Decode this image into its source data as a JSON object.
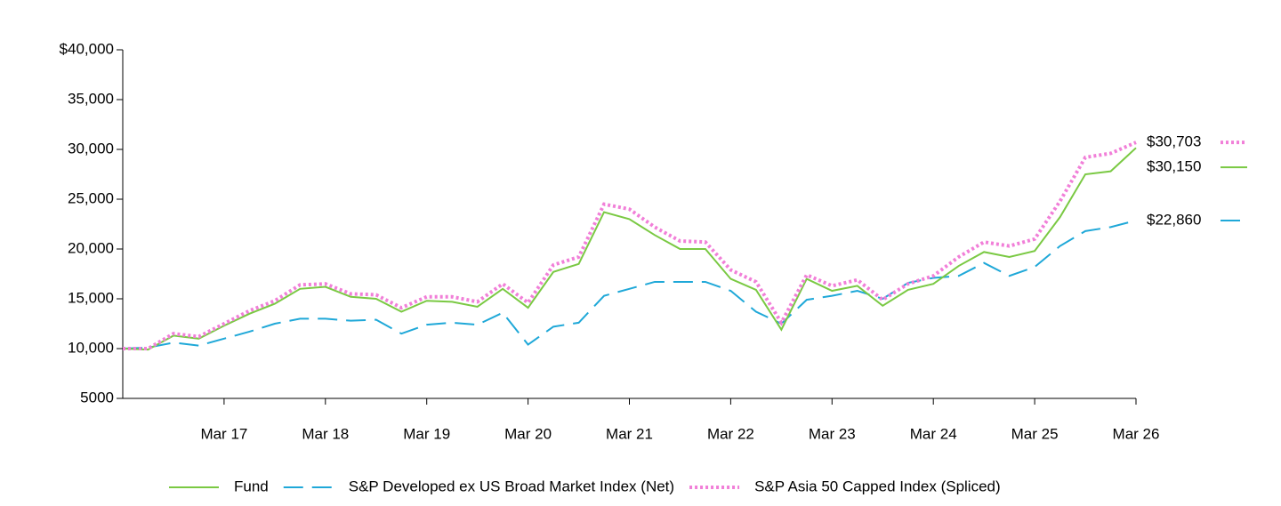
{
  "chart_data": {
    "type": "line",
    "categories": [
      null,
      null,
      null,
      null,
      "Mar 17",
      null,
      null,
      null,
      "Mar 18",
      null,
      null,
      null,
      "Mar 19",
      null,
      null,
      null,
      "Mar 20",
      null,
      null,
      null,
      "Mar 21",
      null,
      null,
      null,
      "Mar 22",
      null,
      null,
      null,
      "Mar 23",
      null,
      null,
      null,
      "Mar 24",
      null,
      null,
      null,
      "Mar 25",
      null,
      null,
      null,
      "Mar 26"
    ],
    "series": [
      {
        "name": "Fund",
        "color": "#7ac943",
        "style": "solid",
        "values": [
          10000,
          9900,
          11300,
          11000,
          12300,
          13500,
          14500,
          16000,
          16200,
          15200,
          15000,
          13700,
          14800,
          14700,
          14200,
          16000,
          14100,
          17700,
          18500,
          23700,
          23000,
          21400,
          20000,
          20000,
          17000,
          15900,
          11900,
          17000,
          15800,
          16300,
          14300,
          15900,
          16500,
          18300,
          19700,
          19200,
          19800,
          23200,
          27500,
          27800,
          30150
        ],
        "value_labels": [
          null,
          null,
          null,
          null,
          null,
          null,
          null,
          null,
          null,
          null,
          null,
          null,
          null,
          null,
          null,
          null,
          null,
          null,
          null,
          null,
          null,
          null,
          null,
          null,
          null,
          null,
          null,
          null,
          null,
          null,
          null,
          null,
          null,
          null,
          null,
          null,
          null,
          null,
          null,
          null,
          "$30,150"
        ]
      },
      {
        "name": "S&P Developed ex US Broad Market Index (Net)",
        "color": "#1fa8d8",
        "style": "dashed",
        "values": [
          10000,
          10100,
          10600,
          10300,
          11000,
          11700,
          12500,
          13000,
          13000,
          12800,
          12900,
          11500,
          12400,
          12600,
          12400,
          13600,
          10400,
          12200,
          12600,
          15300,
          16000,
          16700,
          16700,
          16700,
          15800,
          13700,
          12500,
          14900,
          15300,
          15800,
          15000,
          16600,
          17100,
          17300,
          18600,
          17300,
          18200,
          20300,
          21800,
          22200,
          22860
        ],
        "value_labels": [
          null,
          null,
          null,
          null,
          null,
          null,
          null,
          null,
          null,
          null,
          null,
          null,
          null,
          null,
          null,
          null,
          null,
          null,
          null,
          null,
          null,
          null,
          null,
          null,
          null,
          null,
          null,
          null,
          null,
          null,
          null,
          null,
          null,
          null,
          null,
          null,
          null,
          null,
          null,
          null,
          "$22,860"
        ]
      },
      {
        "name": "S&P Asia 50 Capped Index (Spliced)",
        "color": "#f17fd8",
        "style": "dotted",
        "values": [
          10000,
          10000,
          11500,
          11200,
          12500,
          13800,
          14800,
          16400,
          16500,
          15500,
          15400,
          14100,
          15200,
          15200,
          14700,
          16500,
          14600,
          18400,
          19200,
          24500,
          24000,
          22200,
          20800,
          20700,
          17900,
          16700,
          12600,
          17400,
          16300,
          16900,
          14900,
          16500,
          17300,
          19200,
          20700,
          20300,
          21000,
          24800,
          29200,
          29600,
          30703
        ],
        "value_labels": [
          null,
          null,
          null,
          null,
          null,
          null,
          null,
          null,
          null,
          null,
          null,
          null,
          null,
          null,
          null,
          null,
          null,
          null,
          null,
          null,
          null,
          null,
          null,
          null,
          null,
          null,
          null,
          null,
          null,
          null,
          null,
          null,
          null,
          null,
          null,
          null,
          null,
          null,
          null,
          null,
          "$30,703"
        ]
      }
    ],
    "ylim": [
      5000,
      40000
    ],
    "yticks": [
      5000,
      {
        "value": 10000,
        "label": "10,000"
      },
      {
        "value": 15000,
        "label": "15,000"
      },
      {
        "value": 20000,
        "label": "20,000"
      },
      {
        "value": 25000,
        "label": "25,000"
      },
      {
        "value": 30000,
        "label": "30,000"
      },
      {
        "value": 35000,
        "label": "35,000"
      },
      {
        "value": 40000,
        "label": "$40,000"
      }
    ],
    "grid": false,
    "legend": "bottom"
  }
}
